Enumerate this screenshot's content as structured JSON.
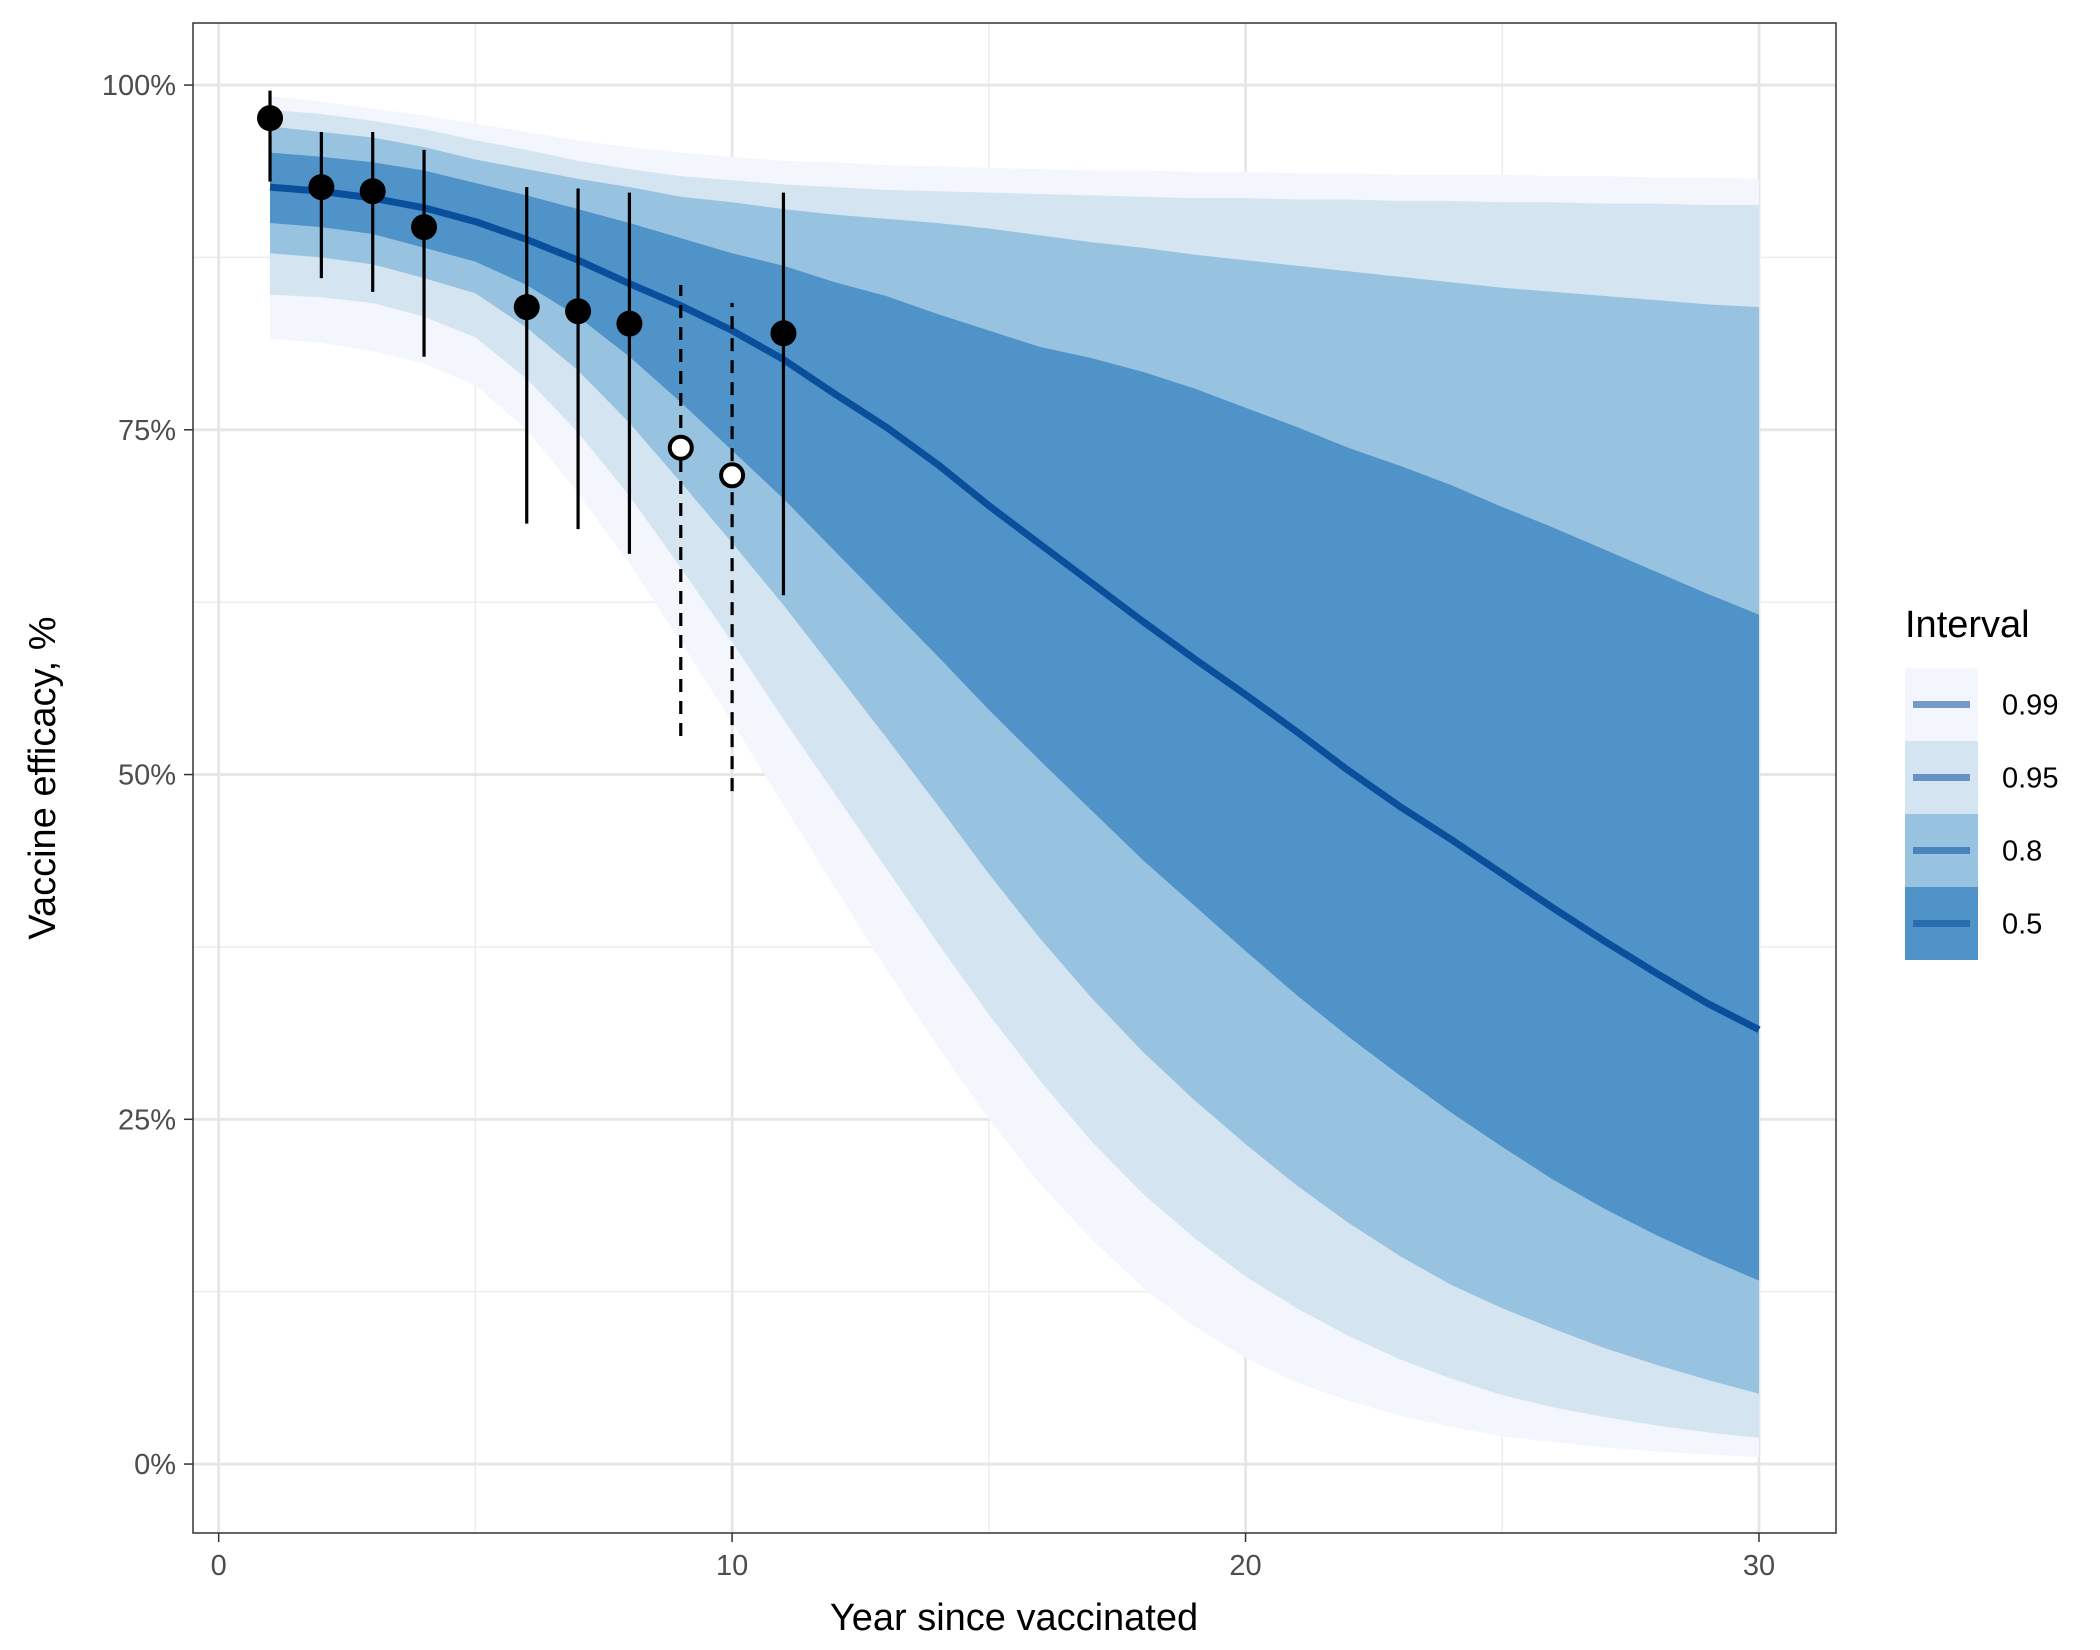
{
  "chart_data": {
    "type": "line",
    "title": "",
    "xlabel": "Year since vaccinated",
    "ylabel": "Vaccine efficacy, %",
    "xlim": [
      -0.5,
      31.5
    ],
    "ylim": [
      -5,
      104.5
    ],
    "xticks": [
      0,
      10,
      20,
      30
    ],
    "xtick_labels": [
      "0",
      "10",
      "20",
      "30"
    ],
    "yticks": [
      0,
      25,
      50,
      75,
      100
    ],
    "ytick_labels": [
      "0%",
      "25%",
      "50%",
      "75%",
      "100%"
    ],
    "grid": true,
    "legend": {
      "title": "Interval",
      "position": "right",
      "entries": [
        "0.99",
        "0.95",
        "0.8",
        "0.5"
      ]
    },
    "colors": {
      "band_099": "#f3f7fd",
      "band_095": "#d4e4f1",
      "band_080": "#97c3e0",
      "band_050": "#4f93c8",
      "median_line": "#0a4f9c",
      "points": "#000000"
    },
    "bands": {
      "x": [
        1,
        2,
        3,
        4,
        5,
        6,
        7,
        8,
        9,
        10,
        11,
        12,
        13,
        14,
        15,
        16,
        17,
        18,
        19,
        20,
        21,
        22,
        23,
        24,
        25,
        26,
        27,
        28,
        29,
        30
      ],
      "median": [
        92.6,
        92.3,
        91.8,
        91.1,
        90.1,
        88.8,
        87.3,
        85.6,
        84.0,
        82.2,
        80.1,
        77.6,
        75.2,
        72.5,
        69.5,
        66.7,
        63.9,
        61.1,
        58.4,
        55.8,
        53.1,
        50.3,
        47.7,
        45.3,
        42.8,
        40.3,
        37.9,
        35.6,
        33.4,
        31.5
      ],
      "b50_low": [
        90.0,
        89.7,
        89.2,
        88.2,
        87.2,
        85.5,
        83.2,
        80.3,
        77.0,
        73.5,
        70.0,
        66.2,
        62.4,
        58.6,
        54.7,
        51.0,
        47.4,
        43.8,
        40.5,
        37.2,
        34.0,
        31.0,
        28.2,
        25.5,
        23.0,
        20.6,
        18.5,
        16.6,
        14.9,
        13.3
      ],
      "b50_high": [
        95.1,
        94.8,
        94.4,
        93.8,
        92.9,
        92.0,
        91.0,
        90.0,
        88.9,
        87.8,
        86.9,
        85.7,
        84.7,
        83.4,
        82.2,
        81.0,
        80.2,
        79.2,
        78.0,
        76.6,
        75.2,
        73.7,
        72.4,
        71.0,
        69.4,
        67.9,
        66.3,
        64.7,
        63.1,
        61.6
      ],
      "b80_low": [
        87.8,
        87.5,
        87.0,
        86.0,
        84.9,
        82.4,
        79.3,
        75.5,
        71.2,
        66.8,
        62.3,
        57.5,
        52.7,
        47.8,
        42.8,
        38.1,
        33.8,
        29.9,
        26.4,
        23.2,
        20.2,
        17.5,
        15.1,
        13.0,
        11.3,
        9.8,
        8.4,
        7.2,
        6.1,
        5.1
      ],
      "b80_high": [
        97.0,
        96.6,
        96.2,
        95.5,
        94.6,
        93.9,
        93.2,
        92.6,
        91.9,
        91.5,
        91.0,
        90.6,
        90.3,
        90.0,
        89.6,
        89.1,
        88.6,
        88.2,
        87.7,
        87.3,
        86.9,
        86.5,
        86.1,
        85.7,
        85.3,
        85.0,
        84.7,
        84.4,
        84.1,
        83.9
      ],
      "b95_low": [
        84.8,
        84.6,
        84.2,
        83.2,
        81.7,
        78.7,
        74.8,
        70.2,
        65.0,
        59.6,
        54.0,
        48.6,
        43.2,
        37.8,
        32.6,
        27.8,
        23.4,
        19.6,
        16.4,
        13.6,
        11.3,
        9.3,
        7.6,
        6.2,
        5.0,
        4.1,
        3.4,
        2.8,
        2.3,
        1.9
      ],
      "b95_high": [
        98.2,
        97.9,
        97.4,
        96.8,
        96.0,
        95.3,
        94.5,
        93.9,
        93.4,
        93.1,
        92.8,
        92.6,
        92.4,
        92.3,
        92.2,
        92.1,
        92.0,
        91.9,
        91.8,
        91.8,
        91.7,
        91.7,
        91.6,
        91.6,
        91.5,
        91.5,
        91.4,
        91.4,
        91.3,
        91.3
      ],
      "b99_low": [
        81.6,
        81.3,
        80.7,
        79.8,
        78.2,
        75.0,
        70.4,
        65.3,
        59.6,
        53.8,
        47.8,
        41.8,
        35.9,
        30.3,
        25.0,
        20.3,
        16.3,
        12.8,
        10.0,
        7.7,
        5.9,
        4.6,
        3.5,
        2.7,
        2.0,
        1.6,
        1.2,
        0.9,
        0.7,
        0.5
      ],
      "b99_high": [
        99.2,
        98.8,
        98.3,
        97.8,
        97.2,
        96.6,
        96.0,
        95.5,
        95.1,
        94.8,
        94.5,
        94.4,
        94.2,
        94.1,
        94.0,
        93.9,
        93.8,
        93.8,
        93.7,
        93.7,
        93.6,
        93.6,
        93.5,
        93.5,
        93.5,
        93.4,
        93.4,
        93.3,
        93.3,
        93.2
      ]
    },
    "observed_solid": [
      {
        "x": 1,
        "y": 97.6,
        "lower": 93.0,
        "upper": 99.6
      },
      {
        "x": 2,
        "y": 92.6,
        "lower": 86.0,
        "upper": 96.6
      },
      {
        "x": 3,
        "y": 92.3,
        "lower": 85.0,
        "upper": 96.6
      },
      {
        "x": 4,
        "y": 89.7,
        "lower": 80.3,
        "upper": 95.3
      },
      {
        "x": 6,
        "y": 83.9,
        "lower": 68.2,
        "upper": 92.6
      },
      {
        "x": 7,
        "y": 83.6,
        "lower": 67.8,
        "upper": 92.5
      },
      {
        "x": 8,
        "y": 82.7,
        "lower": 66.0,
        "upper": 92.2
      },
      {
        "x": 11,
        "y": 82.0,
        "lower": 63.0,
        "upper": 92.2
      }
    ],
    "observed_open": [
      {
        "x": 9,
        "y": 73.7,
        "lower": 52.8,
        "upper": 85.5
      },
      {
        "x": 10,
        "y": 71.7,
        "lower": 48.8,
        "upper": 84.2
      }
    ]
  }
}
